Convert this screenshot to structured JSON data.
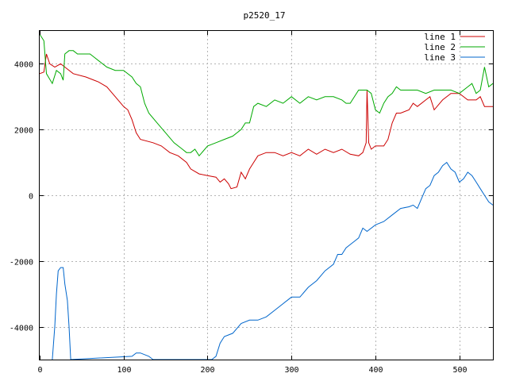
{
  "chart_data": {
    "type": "line",
    "title": "p2520_17",
    "xlabel": "",
    "ylabel": "",
    "xlim": [
      0,
      540
    ],
    "ylim": [
      -5000,
      5000
    ],
    "grid": true,
    "legend_position": "top-right",
    "x_ticks": [
      0,
      100,
      200,
      300,
      400,
      500
    ],
    "y_ticks": [
      -4000,
      -2000,
      0,
      2000,
      4000
    ],
    "series": [
      {
        "name": "line 1",
        "color": "#cc0000",
        "points": [
          [
            0,
            3700
          ],
          [
            5,
            3750
          ],
          [
            8,
            4300
          ],
          [
            12,
            4000
          ],
          [
            18,
            3900
          ],
          [
            25,
            4000
          ],
          [
            30,
            3900
          ],
          [
            40,
            3700
          ],
          [
            55,
            3600
          ],
          [
            65,
            3500
          ],
          [
            70,
            3450
          ],
          [
            80,
            3300
          ],
          [
            90,
            3000
          ],
          [
            100,
            2700
          ],
          [
            105,
            2600
          ],
          [
            110,
            2300
          ],
          [
            115,
            1900
          ],
          [
            120,
            1700
          ],
          [
            135,
            1600
          ],
          [
            145,
            1500
          ],
          [
            155,
            1300
          ],
          [
            165,
            1200
          ],
          [
            175,
            1000
          ],
          [
            180,
            800
          ],
          [
            190,
            650
          ],
          [
            200,
            600
          ],
          [
            210,
            550
          ],
          [
            215,
            400
          ],
          [
            220,
            500
          ],
          [
            225,
            350
          ],
          [
            228,
            200
          ],
          [
            235,
            250
          ],
          [
            240,
            700
          ],
          [
            245,
            500
          ],
          [
            250,
            800
          ],
          [
            255,
            1000
          ],
          [
            260,
            1200
          ],
          [
            270,
            1300
          ],
          [
            280,
            1300
          ],
          [
            290,
            1200
          ],
          [
            300,
            1300
          ],
          [
            310,
            1200
          ],
          [
            320,
            1400
          ],
          [
            330,
            1250
          ],
          [
            340,
            1400
          ],
          [
            350,
            1300
          ],
          [
            360,
            1400
          ],
          [
            370,
            1250
          ],
          [
            380,
            1200
          ],
          [
            385,
            1300
          ],
          [
            389,
            1600
          ],
          [
            390,
            3200
          ],
          [
            392,
            1600
          ],
          [
            395,
            1400
          ],
          [
            400,
            1500
          ],
          [
            410,
            1500
          ],
          [
            415,
            1700
          ],
          [
            420,
            2200
          ],
          [
            425,
            2500
          ],
          [
            430,
            2500
          ],
          [
            440,
            2600
          ],
          [
            445,
            2800
          ],
          [
            450,
            2700
          ],
          [
            460,
            2900
          ],
          [
            465,
            3000
          ],
          [
            470,
            2600
          ],
          [
            480,
            2900
          ],
          [
            490,
            3100
          ],
          [
            495,
            3100
          ],
          [
            500,
            3100
          ],
          [
            510,
            2900
          ],
          [
            520,
            2900
          ],
          [
            525,
            3000
          ],
          [
            530,
            2700
          ],
          [
            540,
            2700
          ]
        ]
      },
      {
        "name": "line 2",
        "color": "#00aa00",
        "points": [
          [
            0,
            4900
          ],
          [
            5,
            4700
          ],
          [
            8,
            3700
          ],
          [
            15,
            3400
          ],
          [
            20,
            3800
          ],
          [
            25,
            3700
          ],
          [
            28,
            3500
          ],
          [
            30,
            4300
          ],
          [
            35,
            4400
          ],
          [
            40,
            4400
          ],
          [
            45,
            4300
          ],
          [
            50,
            4300
          ],
          [
            60,
            4300
          ],
          [
            65,
            4200
          ],
          [
            70,
            4100
          ],
          [
            80,
            3900
          ],
          [
            90,
            3800
          ],
          [
            100,
            3800
          ],
          [
            110,
            3600
          ],
          [
            115,
            3400
          ],
          [
            120,
            3300
          ],
          [
            125,
            2800
          ],
          [
            130,
            2500
          ],
          [
            140,
            2200
          ],
          [
            150,
            1900
          ],
          [
            160,
            1600
          ],
          [
            170,
            1400
          ],
          [
            175,
            1300
          ],
          [
            180,
            1300
          ],
          [
            185,
            1400
          ],
          [
            190,
            1200
          ],
          [
            200,
            1500
          ],
          [
            210,
            1600
          ],
          [
            220,
            1700
          ],
          [
            230,
            1800
          ],
          [
            240,
            2000
          ],
          [
            245,
            2200
          ],
          [
            250,
            2200
          ],
          [
            255,
            2700
          ],
          [
            260,
            2800
          ],
          [
            270,
            2700
          ],
          [
            280,
            2900
          ],
          [
            290,
            2800
          ],
          [
            300,
            3000
          ],
          [
            310,
            2800
          ],
          [
            320,
            3000
          ],
          [
            330,
            2900
          ],
          [
            340,
            3000
          ],
          [
            350,
            3000
          ],
          [
            360,
            2900
          ],
          [
            365,
            2800
          ],
          [
            370,
            2800
          ],
          [
            380,
            3200
          ],
          [
            390,
            3200
          ],
          [
            395,
            3100
          ],
          [
            400,
            2600
          ],
          [
            405,
            2500
          ],
          [
            410,
            2800
          ],
          [
            415,
            3000
          ],
          [
            420,
            3100
          ],
          [
            425,
            3300
          ],
          [
            430,
            3200
          ],
          [
            440,
            3200
          ],
          [
            450,
            3200
          ],
          [
            460,
            3100
          ],
          [
            470,
            3200
          ],
          [
            480,
            3200
          ],
          [
            490,
            3200
          ],
          [
            500,
            3100
          ],
          [
            510,
            3300
          ],
          [
            515,
            3400
          ],
          [
            520,
            3100
          ],
          [
            525,
            3200
          ],
          [
            530,
            3900
          ],
          [
            535,
            3300
          ],
          [
            540,
            3400
          ]
        ]
      },
      {
        "name": "line 3",
        "color": "#0066cc",
        "points": [
          [
            15,
            -5000
          ],
          [
            18,
            -4000
          ],
          [
            20,
            -3000
          ],
          [
            22,
            -2300
          ],
          [
            25,
            -2200
          ],
          [
            28,
            -2200
          ],
          [
            30,
            -2700
          ],
          [
            33,
            -3200
          ],
          [
            35,
            -4000
          ],
          [
            37,
            -5000
          ],
          [
            110,
            -4900
          ],
          [
            115,
            -4800
          ],
          [
            120,
            -4800
          ],
          [
            130,
            -4900
          ],
          [
            135,
            -5000
          ],
          [
            205,
            -5000
          ],
          [
            210,
            -4900
          ],
          [
            215,
            -4500
          ],
          [
            220,
            -4300
          ],
          [
            230,
            -4200
          ],
          [
            240,
            -3900
          ],
          [
            250,
            -3800
          ],
          [
            260,
            -3800
          ],
          [
            270,
            -3700
          ],
          [
            280,
            -3500
          ],
          [
            290,
            -3300
          ],
          [
            300,
            -3100
          ],
          [
            310,
            -3100
          ],
          [
            320,
            -2800
          ],
          [
            330,
            -2600
          ],
          [
            340,
            -2300
          ],
          [
            350,
            -2100
          ],
          [
            355,
            -1800
          ],
          [
            360,
            -1800
          ],
          [
            365,
            -1600
          ],
          [
            370,
            -1500
          ],
          [
            375,
            -1400
          ],
          [
            380,
            -1300
          ],
          [
            385,
            -1000
          ],
          [
            390,
            -1100
          ],
          [
            400,
            -900
          ],
          [
            410,
            -800
          ],
          [
            420,
            -600
          ],
          [
            430,
            -400
          ],
          [
            440,
            -350
          ],
          [
            445,
            -300
          ],
          [
            450,
            -400
          ],
          [
            455,
            -100
          ],
          [
            460,
            200
          ],
          [
            465,
            300
          ],
          [
            470,
            600
          ],
          [
            475,
            700
          ],
          [
            480,
            900
          ],
          [
            485,
            1000
          ],
          [
            490,
            800
          ],
          [
            495,
            700
          ],
          [
            500,
            400
          ],
          [
            505,
            500
          ],
          [
            510,
            700
          ],
          [
            515,
            600
          ],
          [
            520,
            400
          ],
          [
            525,
            200
          ],
          [
            530,
            0
          ],
          [
            535,
            -200
          ],
          [
            540,
            -300
          ]
        ]
      }
    ]
  }
}
